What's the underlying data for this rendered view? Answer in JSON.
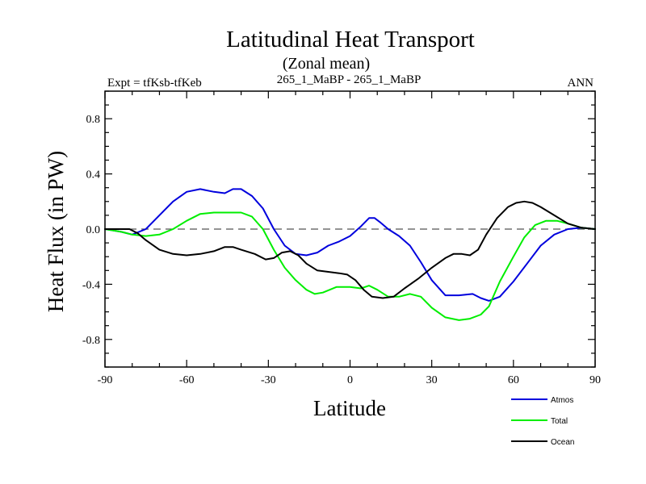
{
  "chart_data": {
    "type": "line",
    "title": "Latitudinal Heat Transport",
    "subtitle": "(Zonal mean)",
    "left_label": "Expt = tfKsb-tfKeb",
    "center_label": "265_1_MaBP - 265_1_MaBP",
    "right_label": "ANN",
    "xlabel": "Latitude",
    "ylabel": "Heat Flux (in PW)",
    "xlim": [
      -90,
      90
    ],
    "ylim": [
      -1.0,
      1.0
    ],
    "xticks": [
      -90,
      -60,
      -30,
      0,
      30,
      60,
      90
    ],
    "xtick_labels": [
      "-90",
      "-60",
      "-30",
      "0",
      "30",
      "60",
      "90"
    ],
    "yticks": [
      -0.8,
      -0.4,
      0.0,
      0.4,
      0.8
    ],
    "ytick_labels": [
      "-0.8",
      "-0.4",
      "0.0",
      "0.4",
      "0.8"
    ],
    "reference_line": 0.0,
    "grid": false,
    "legend_position": "bottom-right",
    "series": [
      {
        "name": "Atmos",
        "color": "#0000dd",
        "x": [
          -90,
          -84,
          -80,
          -75,
          -70,
          -65,
          -60,
          -55,
          -50,
          -46,
          -43,
          -40,
          -36,
          -32,
          -28,
          -24,
          -20,
          -16,
          -12,
          -8,
          -4,
          0,
          4,
          7,
          9,
          11,
          14,
          18,
          22,
          26,
          30,
          35,
          40,
          45,
          48,
          51,
          55,
          60,
          65,
          70,
          75,
          80,
          85,
          90
        ],
        "y": [
          0.0,
          -0.02,
          -0.04,
          0.0,
          0.1,
          0.2,
          0.27,
          0.29,
          0.27,
          0.26,
          0.29,
          0.29,
          0.24,
          0.15,
          0.0,
          -0.12,
          -0.18,
          -0.19,
          -0.17,
          -0.12,
          -0.09,
          -0.05,
          0.02,
          0.08,
          0.08,
          0.05,
          0.0,
          -0.05,
          -0.12,
          -0.24,
          -0.37,
          -0.48,
          -0.48,
          -0.47,
          -0.5,
          -0.52,
          -0.49,
          -0.38,
          -0.25,
          -0.12,
          -0.04,
          0.0,
          0.01,
          0.0
        ]
      },
      {
        "name": "Total",
        "color": "#00ee00",
        "x": [
          -90,
          -84,
          -80,
          -75,
          -70,
          -65,
          -60,
          -55,
          -50,
          -45,
          -40,
          -36,
          -32,
          -28,
          -24,
          -20,
          -16,
          -13,
          -10,
          -5,
          0,
          4,
          7,
          10,
          14,
          18,
          22,
          26,
          30,
          35,
          40,
          44,
          48,
          51,
          55,
          60,
          64,
          68,
          72,
          76,
          80,
          85,
          90
        ],
        "y": [
          0.0,
          -0.02,
          -0.04,
          -0.05,
          -0.04,
          0.0,
          0.06,
          0.11,
          0.12,
          0.12,
          0.12,
          0.09,
          0.0,
          -0.15,
          -0.28,
          -0.37,
          -0.44,
          -0.47,
          -0.46,
          -0.42,
          -0.42,
          -0.43,
          -0.41,
          -0.44,
          -0.49,
          -0.49,
          -0.47,
          -0.49,
          -0.57,
          -0.64,
          -0.66,
          -0.65,
          -0.62,
          -0.56,
          -0.38,
          -0.2,
          -0.06,
          0.03,
          0.06,
          0.06,
          0.04,
          0.01,
          0.0
        ]
      },
      {
        "name": "Ocean",
        "color": "#000000",
        "x": [
          -90,
          -85,
          -81,
          -78,
          -75,
          -70,
          -65,
          -60,
          -55,
          -50,
          -46,
          -43,
          -40,
          -35,
          -31,
          -28,
          -25,
          -22,
          -19,
          -16,
          -12,
          -8,
          -4,
          -1,
          2,
          5,
          8,
          12,
          16,
          20,
          25,
          30,
          35,
          38,
          41,
          44,
          47,
          50,
          54,
          58,
          61,
          64,
          67,
          70,
          75,
          80,
          85,
          90
        ],
        "y": [
          0.0,
          0.0,
          0.0,
          -0.03,
          -0.08,
          -0.15,
          -0.18,
          -0.19,
          -0.18,
          -0.16,
          -0.13,
          -0.13,
          -0.15,
          -0.18,
          -0.22,
          -0.21,
          -0.17,
          -0.16,
          -0.19,
          -0.25,
          -0.3,
          -0.31,
          -0.32,
          -0.33,
          -0.37,
          -0.44,
          -0.49,
          -0.5,
          -0.49,
          -0.43,
          -0.36,
          -0.28,
          -0.21,
          -0.18,
          -0.18,
          -0.19,
          -0.15,
          -0.04,
          0.08,
          0.16,
          0.19,
          0.2,
          0.19,
          0.16,
          0.1,
          0.04,
          0.01,
          0.0
        ]
      }
    ]
  }
}
